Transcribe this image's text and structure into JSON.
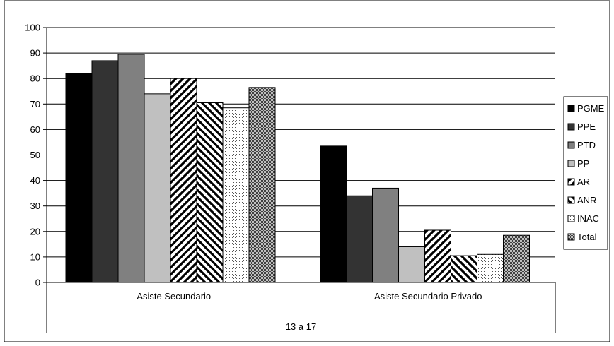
{
  "chart_data": {
    "type": "bar",
    "title": "",
    "xlabel": "",
    "ylabel": "",
    "ylim": [
      0,
      100
    ],
    "yticks": [
      0,
      10,
      20,
      30,
      40,
      50,
      60,
      70,
      80,
      90,
      100
    ],
    "grid": true,
    "legend_position": "right",
    "categories": [
      "Asiste Secundario",
      "Asiste Secundario Privado"
    ],
    "group_label": "13 a 17",
    "series": [
      {
        "name": "PGME",
        "values": [
          82,
          53.5
        ],
        "fill": "solid",
        "color": "#000000"
      },
      {
        "name": "PPE",
        "values": [
          87,
          34
        ],
        "fill": "solid",
        "color": "#333333"
      },
      {
        "name": "PTD",
        "values": [
          89.5,
          37
        ],
        "fill": "solid",
        "color": "#808080"
      },
      {
        "name": "PP",
        "values": [
          74,
          14
        ],
        "fill": "solid",
        "color": "#c0c0c0"
      },
      {
        "name": "AR",
        "values": [
          80,
          20.5
        ],
        "fill": "diag-fwd",
        "color": "#000000"
      },
      {
        "name": "ANR",
        "values": [
          70.5,
          10.5
        ],
        "fill": "diag-back",
        "color": "#000000"
      },
      {
        "name": "INAC",
        "values": [
          68.5,
          11
        ],
        "fill": "dots",
        "color": "#000000"
      },
      {
        "name": "Total",
        "values": [
          76.5,
          18.5
        ],
        "fill": "checker",
        "color": "#000000"
      }
    ]
  }
}
